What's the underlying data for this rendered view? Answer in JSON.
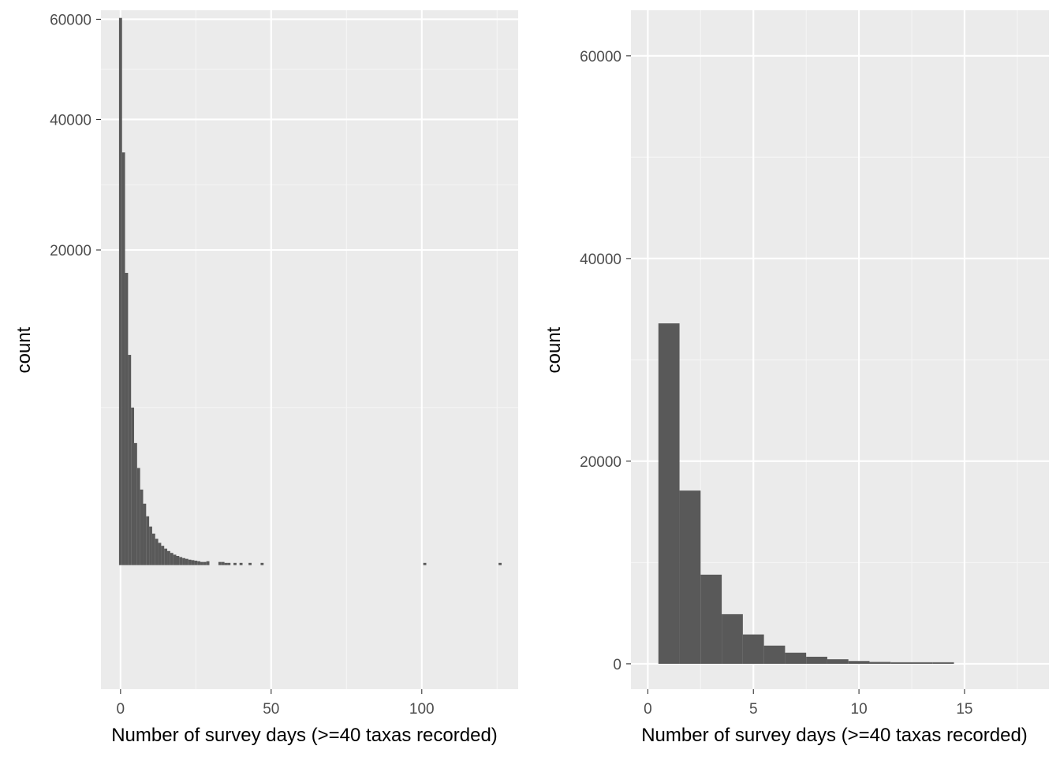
{
  "chart_data": [
    {
      "type": "bar",
      "xlabel": "Number of survey days (>=40 taxas recorded)",
      "ylabel": "count",
      "y_scale": "sqrt",
      "xlim": [
        -6.5,
        132
      ],
      "ylim": [
        0,
        62000
      ],
      "grid": true,
      "x_ticks": [
        0,
        50,
        100
      ],
      "y_ticks": [
        20000,
        40000,
        60000
      ],
      "bin_width": 1,
      "bins": [
        {
          "x": 0,
          "count": 60300
        },
        {
          "x": 1,
          "count": 34300
        },
        {
          "x": 2,
          "count": 17200
        },
        {
          "x": 3,
          "count": 8900
        },
        {
          "x": 4,
          "count": 5000
        },
        {
          "x": 5,
          "count": 3000
        },
        {
          "x": 6,
          "count": 1900
        },
        {
          "x": 7,
          "count": 1150
        },
        {
          "x": 8,
          "count": 760
        },
        {
          "x": 9,
          "count": 480
        },
        {
          "x": 10,
          "count": 300
        },
        {
          "x": 11,
          "count": 200
        },
        {
          "x": 12,
          "count": 140
        },
        {
          "x": 13,
          "count": 100
        },
        {
          "x": 14,
          "count": 75
        },
        {
          "x": 15,
          "count": 55
        },
        {
          "x": 16,
          "count": 40
        },
        {
          "x": 17,
          "count": 30
        },
        {
          "x": 18,
          "count": 22
        },
        {
          "x": 19,
          "count": 17
        },
        {
          "x": 20,
          "count": 13
        },
        {
          "x": 21,
          "count": 10
        },
        {
          "x": 22,
          "count": 8
        },
        {
          "x": 23,
          "count": 6
        },
        {
          "x": 24,
          "count": 5
        },
        {
          "x": 25,
          "count": 4
        },
        {
          "x": 26,
          "count": 3
        },
        {
          "x": 27,
          "count": 2
        },
        {
          "x": 28,
          "count": 2
        },
        {
          "x": 29,
          "count": 3
        },
        {
          "x": 33,
          "count": 2
        },
        {
          "x": 34,
          "count": 2
        },
        {
          "x": 35,
          "count": 1
        },
        {
          "x": 36,
          "count": 1
        },
        {
          "x": 38,
          "count": 1
        },
        {
          "x": 40,
          "count": 1
        },
        {
          "x": 43,
          "count": 1
        },
        {
          "x": 47,
          "count": 1
        },
        {
          "x": 101,
          "count": 1
        },
        {
          "x": 126,
          "count": 1
        }
      ]
    },
    {
      "type": "bar",
      "xlabel": "Number of survey days (>=40 taxas recorded)",
      "ylabel": "count",
      "y_scale": "linear",
      "xlim": [
        -0.8,
        19
      ],
      "ylim": [
        -2500,
        64500
      ],
      "grid": true,
      "x_ticks": [
        0,
        5,
        10,
        15
      ],
      "y_ticks": [
        0,
        20000,
        40000,
        60000
      ],
      "bin_width": 1,
      "bins": [
        {
          "x": 1,
          "count": 33600
        },
        {
          "x": 2,
          "count": 17100
        },
        {
          "x": 3,
          "count": 8800
        },
        {
          "x": 4,
          "count": 4900
        },
        {
          "x": 5,
          "count": 2900
        },
        {
          "x": 6,
          "count": 1800
        },
        {
          "x": 7,
          "count": 1100
        },
        {
          "x": 8,
          "count": 700
        },
        {
          "x": 9,
          "count": 450
        },
        {
          "x": 10,
          "count": 280
        },
        {
          "x": 11,
          "count": 190
        },
        {
          "x": 12,
          "count": 130
        },
        {
          "x": 13,
          "count": 95
        },
        {
          "x": 14,
          "count": 70
        }
      ]
    }
  ]
}
